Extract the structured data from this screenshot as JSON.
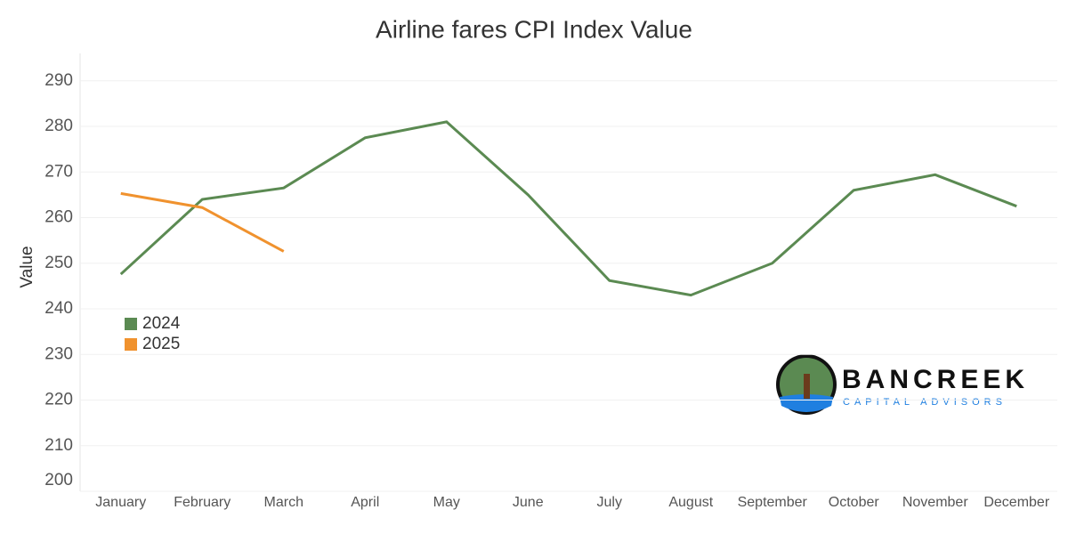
{
  "chart_data": {
    "type": "line",
    "title": "Airline fares CPI Index Value",
    "y_label": "Value",
    "categories": [
      "January",
      "February",
      "March",
      "April",
      "May",
      "June",
      "July",
      "August",
      "September",
      "October",
      "November",
      "December"
    ],
    "series": [
      {
        "name": "2024",
        "color": "#5b8a52",
        "values": [
          247.6,
          264,
          266.5,
          277.5,
          281,
          265,
          246.2,
          243,
          250,
          266,
          269.4,
          262.5
        ]
      },
      {
        "name": "2025",
        "color": "#f0922e",
        "values": [
          265.3,
          262.2,
          252.6,
          null,
          null,
          null,
          null,
          null,
          null,
          null,
          null,
          null
        ]
      }
    ],
    "ylim": [
      200,
      296
    ],
    "yticks": [
      200,
      210,
      220,
      230,
      240,
      250,
      260,
      270,
      280,
      290
    ],
    "grid": true,
    "legend": "left"
  },
  "logo": {
    "name": "BANCREEK",
    "tagline": "CAPITAL ADVISORS"
  }
}
